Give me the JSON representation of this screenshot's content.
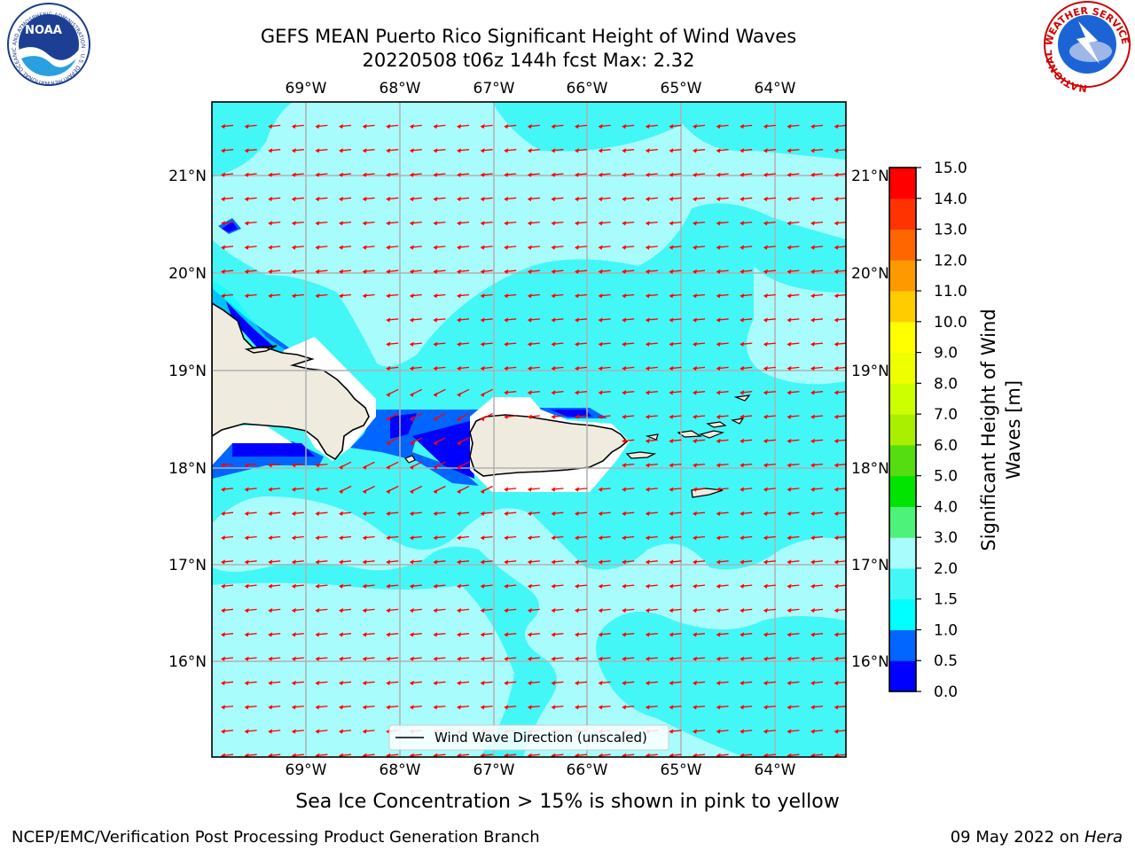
{
  "title": {
    "line1": "GEFS MEAN Puerto Rico Significant Height of Wind Waves",
    "line2": "20220508 t06z 144h fcst   Max: 2.32"
  },
  "logos": {
    "left_text": "NOAA",
    "left_ring_text": "NATIONAL OCEANIC AND ATMOSPHERIC ADMINISTRATION · U.S. DEPARTMENT OF COMMERCE",
    "right_ring_text": "NATIONAL WEATHER SERVICE"
  },
  "map": {
    "lon_labels": [
      "69°W",
      "68°W",
      "67°W",
      "66°W",
      "65°W",
      "64°W"
    ],
    "lat_labels": [
      "21°N",
      "20°N",
      "19°N",
      "18°N",
      "17°N",
      "16°N"
    ],
    "legend_label": "Wind Wave Direction (unscaled)",
    "grid": true,
    "arrow_color": "#ff0000",
    "wave_direction": "toward west (easterly trade winds)"
  },
  "colorbar": {
    "label_line1": "Significant Height of Wind",
    "label_line2": "Waves [m]",
    "ticks": [
      "0.0",
      "0.5",
      "1.0",
      "1.5",
      "2.0",
      "3.0",
      "4.0",
      "5.0",
      "6.0",
      "7.0",
      "8.0",
      "9.0",
      "10.0",
      "11.0",
      "12.0",
      "13.0",
      "14.0",
      "15.0"
    ],
    "colors": [
      "#0000ff",
      "#0066ff",
      "#00ffff",
      "#44f7f7",
      "#a9fcfc",
      "#4cf27a",
      "#00e400",
      "#55dd11",
      "#aaee00",
      "#ccff00",
      "#eeff00",
      "#ffff00",
      "#ffcc00",
      "#ff9900",
      "#ff6600",
      "#ff3300",
      "#ff0000"
    ]
  },
  "note": "Sea Ice Concentration > 15% is shown in pink to yellow",
  "footer": {
    "left": "NCEP/EMC/Verification Post Processing Product Generation Branch",
    "right_prefix": "09 May 2022 on ",
    "right_machine": "Hera"
  },
  "colors": {
    "land": "#efecdf",
    "sea_mid": "#44f7f7",
    "sea_light": "#a9fcfc",
    "sea_dark": "#0066ff",
    "sea_deepest": "#0000ff",
    "grid": "#b0b0b0"
  }
}
